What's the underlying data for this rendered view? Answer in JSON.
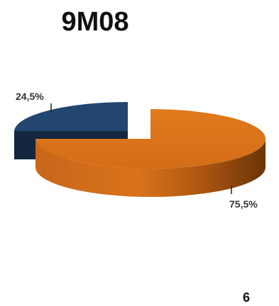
{
  "header": {
    "title": "9M08"
  },
  "footer": {
    "page_number": "6"
  },
  "chart_data": {
    "type": "pie",
    "style": "3d-exploded",
    "title": "9M08",
    "slices": [
      {
        "label": "75,5%",
        "value": 75.5,
        "color": "#d9731a"
      },
      {
        "label": "24,5%",
        "value": 24.5,
        "color": "#1f3f66"
      }
    ],
    "legend": "none"
  }
}
